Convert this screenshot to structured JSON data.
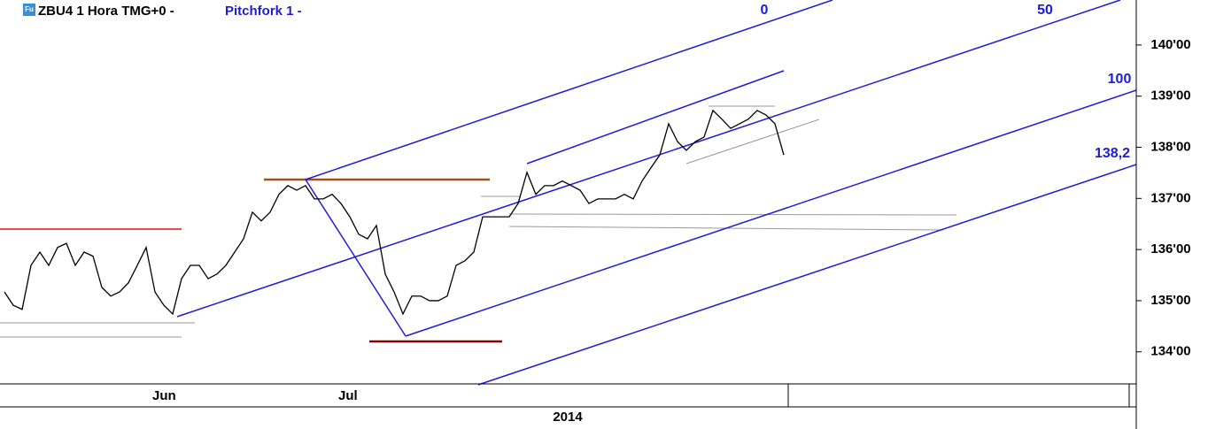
{
  "chart_data": {
    "type": "line",
    "title": "ZBU4 1 Hora TMG+0 -",
    "icon_label": "Fu",
    "study": "Pitchfork 1 -",
    "xlabel": "2014",
    "pitchfork_levels": [
      "0",
      "50",
      "100",
      "138,2"
    ],
    "categories": [
      null,
      null,
      null,
      null,
      null,
      null,
      null,
      null,
      null,
      null,
      null,
      null,
      null,
      null,
      null,
      null,
      null,
      "Jun",
      null,
      null,
      null,
      null,
      null,
      null,
      null,
      null,
      null,
      null,
      null,
      null,
      null,
      null,
      null,
      null,
      null,
      null,
      null,
      null,
      "Jul",
      null,
      null,
      null,
      null,
      null,
      null,
      null,
      null,
      null,
      null,
      null,
      null,
      null,
      null,
      null,
      null,
      null,
      null,
      null,
      null,
      null,
      null,
      null,
      null,
      null,
      null,
      null,
      null,
      null,
      null,
      null,
      null,
      null,
      null,
      null,
      null,
      null,
      null,
      null,
      null,
      null,
      null,
      null,
      null,
      null,
      null,
      null,
      null,
      null,
      null
    ],
    "values": [
      135.17,
      134.91,
      134.83,
      135.69,
      135.95,
      135.69,
      136.04,
      136.12,
      135.69,
      135.95,
      135.87,
      135.26,
      135.09,
      135.17,
      135.35,
      135.69,
      136.04,
      135.17,
      134.91,
      134.74,
      135.43,
      135.69,
      135.69,
      135.43,
      135.52,
      135.69,
      135.95,
      136.21,
      136.73,
      136.56,
      136.73,
      137.08,
      137.25,
      137.16,
      137.25,
      136.99,
      136.99,
      137.08,
      136.9,
      136.64,
      136.3,
      136.21,
      136.47,
      135.52,
      135.17,
      134.74,
      135.09,
      135.09,
      135.0,
      135.0,
      135.09,
      135.69,
      135.78,
      135.95,
      136.64,
      136.64,
      136.64,
      136.64,
      136.9,
      137.51,
      137.08,
      137.25,
      137.25,
      137.34,
      137.25,
      137.16,
      136.9,
      136.99,
      136.99,
      136.99,
      137.08,
      136.99,
      137.34,
      137.6,
      137.85,
      138.46,
      138.11,
      137.94,
      138.11,
      138.2,
      138.72,
      138.55,
      138.37,
      138.46,
      138.55,
      138.72,
      138.63,
      138.46,
      137.85
    ],
    "color": "#000000",
    "ylim": [
      133.39,
      140.88
    ],
    "yticks": [
      {
        "value": 134,
        "label": "134'00"
      },
      {
        "value": 135,
        "label": "135'00"
      },
      {
        "value": 136,
        "label": "136'00"
      },
      {
        "value": 137,
        "label": "137'00"
      },
      {
        "value": 138,
        "label": "138'00"
      },
      {
        "value": 139,
        "label": "139'00"
      },
      {
        "value": 140,
        "label": "140'00"
      }
    ],
    "y_axis_side": "right"
  }
}
